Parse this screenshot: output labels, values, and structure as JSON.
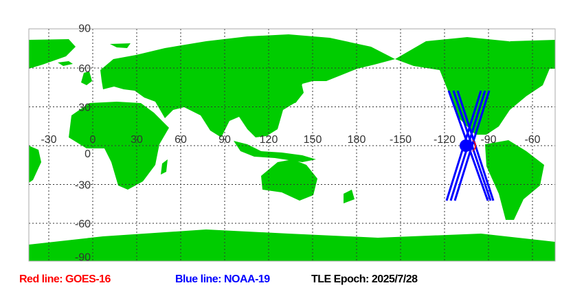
{
  "map": {
    "projection": "equirectangular",
    "land_color": "#00cc00",
    "ocean_color": "#ffffff",
    "grid": true,
    "lat_labels": [
      "90",
      "60",
      "30",
      "0",
      "-30",
      "-60",
      "-90"
    ],
    "lon_labels": [
      "-30",
      "0",
      "30",
      "60",
      "90",
      "120",
      "150",
      "180",
      "-150",
      "-120",
      "-90",
      "-60"
    ]
  },
  "satellites": [
    {
      "name": "GOES-16",
      "color": "#ff0000",
      "track_label": "Red line: GOES-16"
    },
    {
      "name": "NOAA-19",
      "color": "#0000ff",
      "track_label": "Blue line: NOAA-19"
    }
  ],
  "legend": {
    "red": "Red line: GOES-16",
    "blue": "Blue line: NOAA-19",
    "epoch": "TLE Epoch: 2025/7/28"
  }
}
